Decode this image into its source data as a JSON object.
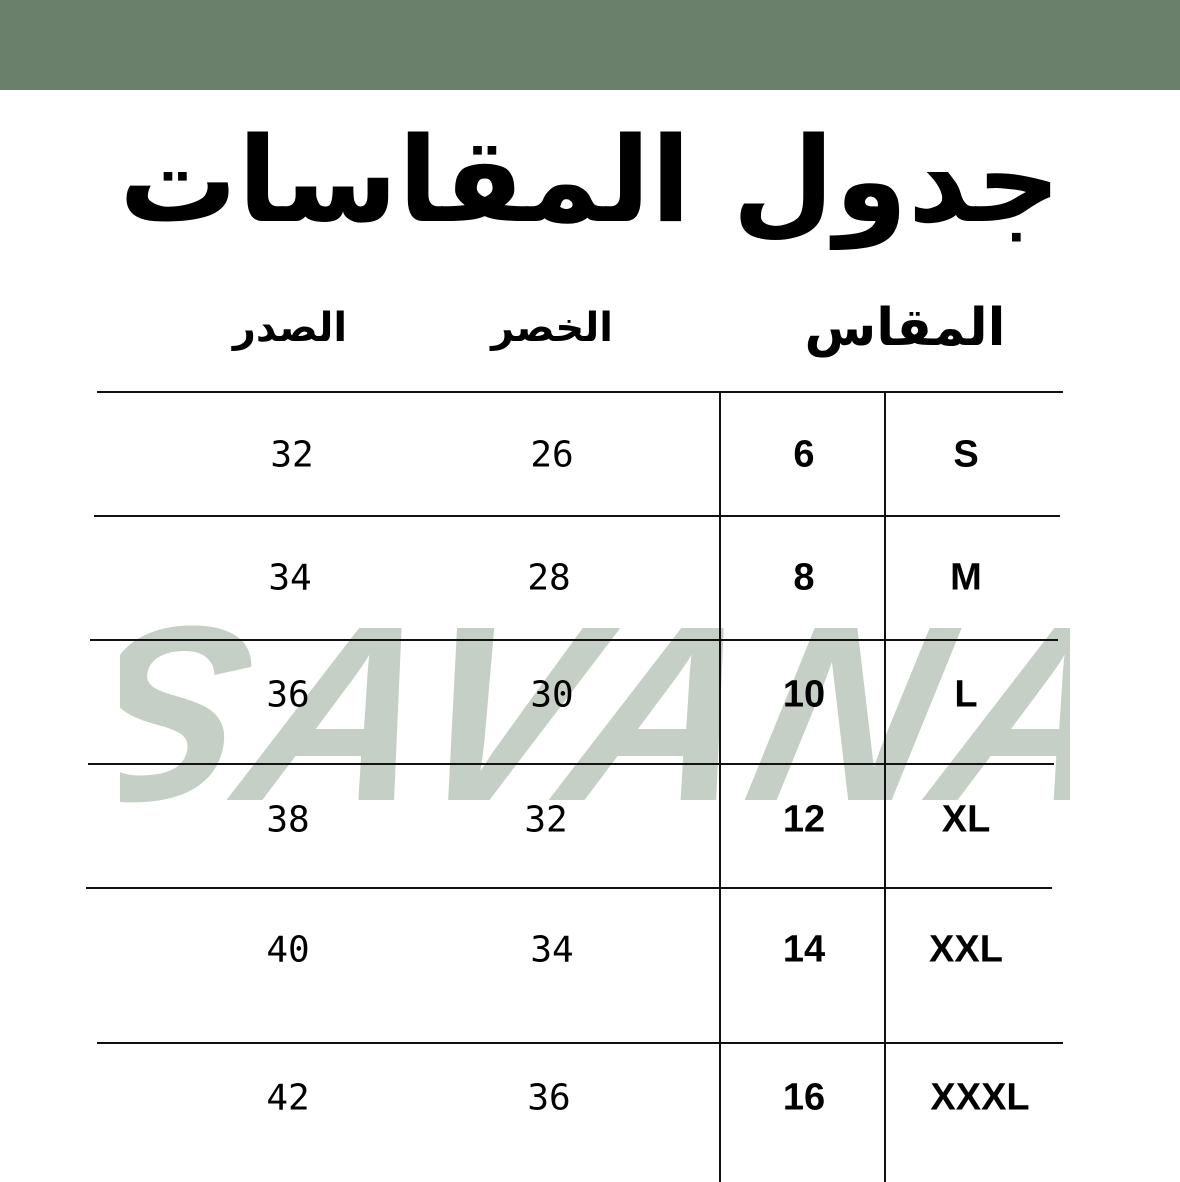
{
  "colors": {
    "band": "#6b806a",
    "watermark": "#c5cfc5",
    "text": "#000000"
  },
  "title": "جدول المقاسات",
  "headers": {
    "chest": "الصدر",
    "waist": "الخصر",
    "size": "المقاس"
  },
  "watermark": "SAVANA",
  "rows": [
    {
      "chest": "32",
      "waist": "26",
      "number": "6",
      "size": "S"
    },
    {
      "chest": "34",
      "waist": "28",
      "number": "8",
      "size": "M"
    },
    {
      "chest": "36",
      "waist": "30",
      "number": "10",
      "size": "L"
    },
    {
      "chest": "38",
      "waist": "32",
      "number": "12",
      "size": "XL"
    },
    {
      "chest": "40",
      "waist": "34",
      "number": "14",
      "size": "XXL"
    },
    {
      "chest": "42",
      "waist": "36",
      "number": "16",
      "size": "XXXL"
    }
  ]
}
